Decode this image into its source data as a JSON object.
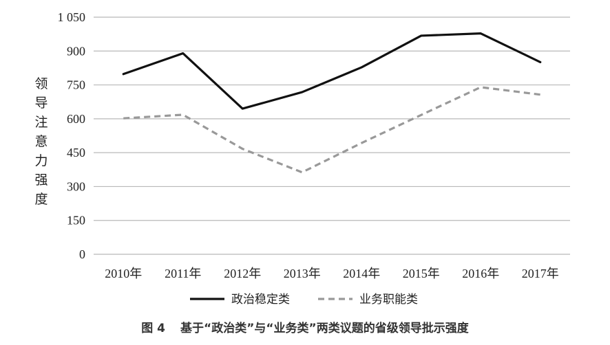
{
  "chart_data": {
    "type": "line",
    "title": "",
    "xlabel": "",
    "ylabel": "领导注意力强度",
    "categories": [
      "2010年",
      "2011年",
      "2012年",
      "2013年",
      "2014年",
      "2015年",
      "2016年",
      "2017年"
    ],
    "series": [
      {
        "name": "政治稳定类",
        "color": "#111111",
        "style": "solid",
        "values": [
          798,
          890,
          645,
          718,
          828,
          968,
          978,
          851
        ]
      },
      {
        "name": "业务职能类",
        "color": "#999999",
        "style": "dashed",
        "values": [
          602,
          618,
          467,
          363,
          493,
          617,
          740,
          707
        ]
      }
    ],
    "ylim": [
      0,
      1050
    ],
    "yticks": [
      0,
      150,
      300,
      450,
      600,
      750,
      900,
      1050
    ],
    "ytick_labels": [
      "0",
      "150",
      "300",
      "450",
      "600",
      "750",
      "900",
      "1 050"
    ],
    "grid": true,
    "legend_position": "bottom"
  },
  "caption": {
    "figure_number": "图 4",
    "text": "基于“政治类”与“业务类”两类议题的省级领导批示强度"
  }
}
